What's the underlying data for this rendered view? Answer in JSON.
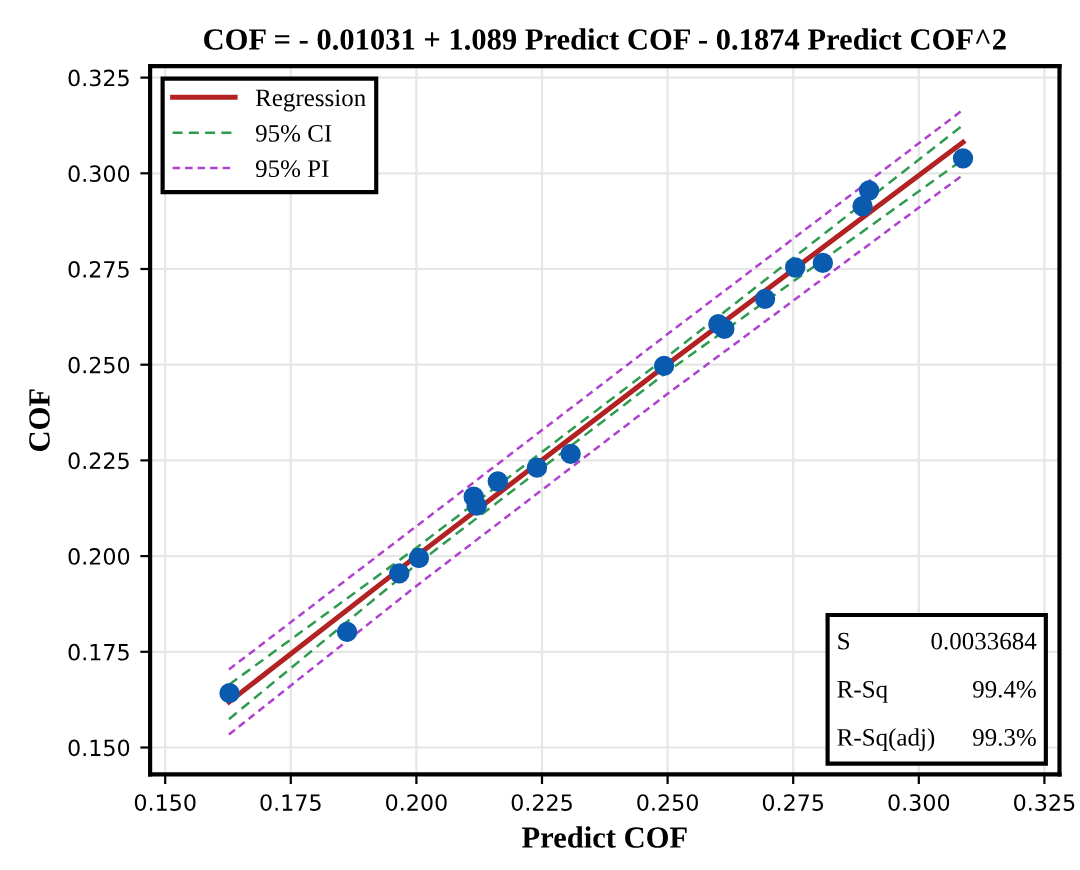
{
  "chart_data": {
    "type": "scatter",
    "title": "COF = - 0.01031 + 1.089 Predict COF - 0.1874 Predict COF^2",
    "xlabel": "Predict COF",
    "ylabel": "COF",
    "xlim": [
      0.147,
      0.328
    ],
    "ylim": [
      0.143,
      0.328
    ],
    "xticks": [
      {
        "value": 0.15,
        "label": "0.150"
      },
      {
        "value": 0.175,
        "label": "0.175"
      },
      {
        "value": 0.2,
        "label": "0.200"
      },
      {
        "value": 0.225,
        "label": "0.225"
      },
      {
        "value": 0.25,
        "label": "0.250"
      },
      {
        "value": 0.275,
        "label": "0.275"
      },
      {
        "value": 0.3,
        "label": "0.300"
      },
      {
        "value": 0.325,
        "label": "0.325"
      }
    ],
    "yticks": [
      {
        "value": 0.15,
        "label": "0.150"
      },
      {
        "value": 0.175,
        "label": "0.175"
      },
      {
        "value": 0.2,
        "label": "0.200"
      },
      {
        "value": 0.225,
        "label": "0.225"
      },
      {
        "value": 0.25,
        "label": "0.250"
      },
      {
        "value": 0.275,
        "label": "0.275"
      },
      {
        "value": 0.3,
        "label": "0.300"
      },
      {
        "value": 0.325,
        "label": "0.325"
      }
    ],
    "grid": true,
    "legend": "top left",
    "series": [
      {
        "marker": "circle",
        "color": "#0a5bb0",
        "x": [
          0.1628,
          0.1862,
          0.1966,
          0.2005,
          0.2114,
          0.212,
          0.2162,
          0.224,
          0.2307,
          0.2493,
          0.2601,
          0.2613,
          0.2694,
          0.2754,
          0.2809,
          0.2888,
          0.2901,
          0.3088
        ],
        "values": [
          0.1642,
          0.1802,
          0.1955,
          0.1995,
          0.2155,
          0.2132,
          0.2195,
          0.2231,
          0.2267,
          0.2497,
          0.2606,
          0.2594,
          0.2672,
          0.2754,
          0.2766,
          0.2914,
          0.2955,
          0.3039
        ]
      },
      {
        "type": "line",
        "name": "Regression",
        "color": "#b22222",
        "line_style": "solid",
        "x": [
          0.1627,
          0.2,
          0.25,
          0.3088
        ],
        "values": [
          0.1619,
          0.2,
          0.2502,
          0.3081
        ]
      },
      {
        "type": "line",
        "name": "95% CI",
        "color": "#2e9b4f",
        "line_style": "dashed",
        "x": [
          0.1627,
          0.2,
          0.25,
          0.3088
        ],
        "values": [
          0.1664,
          0.2022,
          0.2522,
          0.3126
        ]
      },
      {
        "type": "line",
        "color": "#2e9b4f",
        "line_style": "dashed",
        "x": [
          0.1627,
          0.2,
          0.25,
          0.3088
        ],
        "values": [
          0.1574,
          0.1978,
          0.2482,
          0.3036
        ]
      },
      {
        "type": "line",
        "name": "95% PI",
        "color": "#b040d0",
        "line_style": "dotted",
        "x": [
          0.1627,
          0.2,
          0.25,
          0.3088
        ],
        "values": [
          0.1704,
          0.2078,
          0.258,
          0.3166
        ]
      },
      {
        "type": "line",
        "color": "#b040d0",
        "line_style": "dotted",
        "x": [
          0.1627,
          0.2,
          0.25,
          0.3088
        ],
        "values": [
          0.1534,
          0.1922,
          0.2424,
          0.2996
        ]
      }
    ],
    "annotations": [
      "S",
      "0.0033684",
      "R-Sq",
      "99.4%",
      "R-Sq(adj)",
      "99.3%"
    ]
  }
}
